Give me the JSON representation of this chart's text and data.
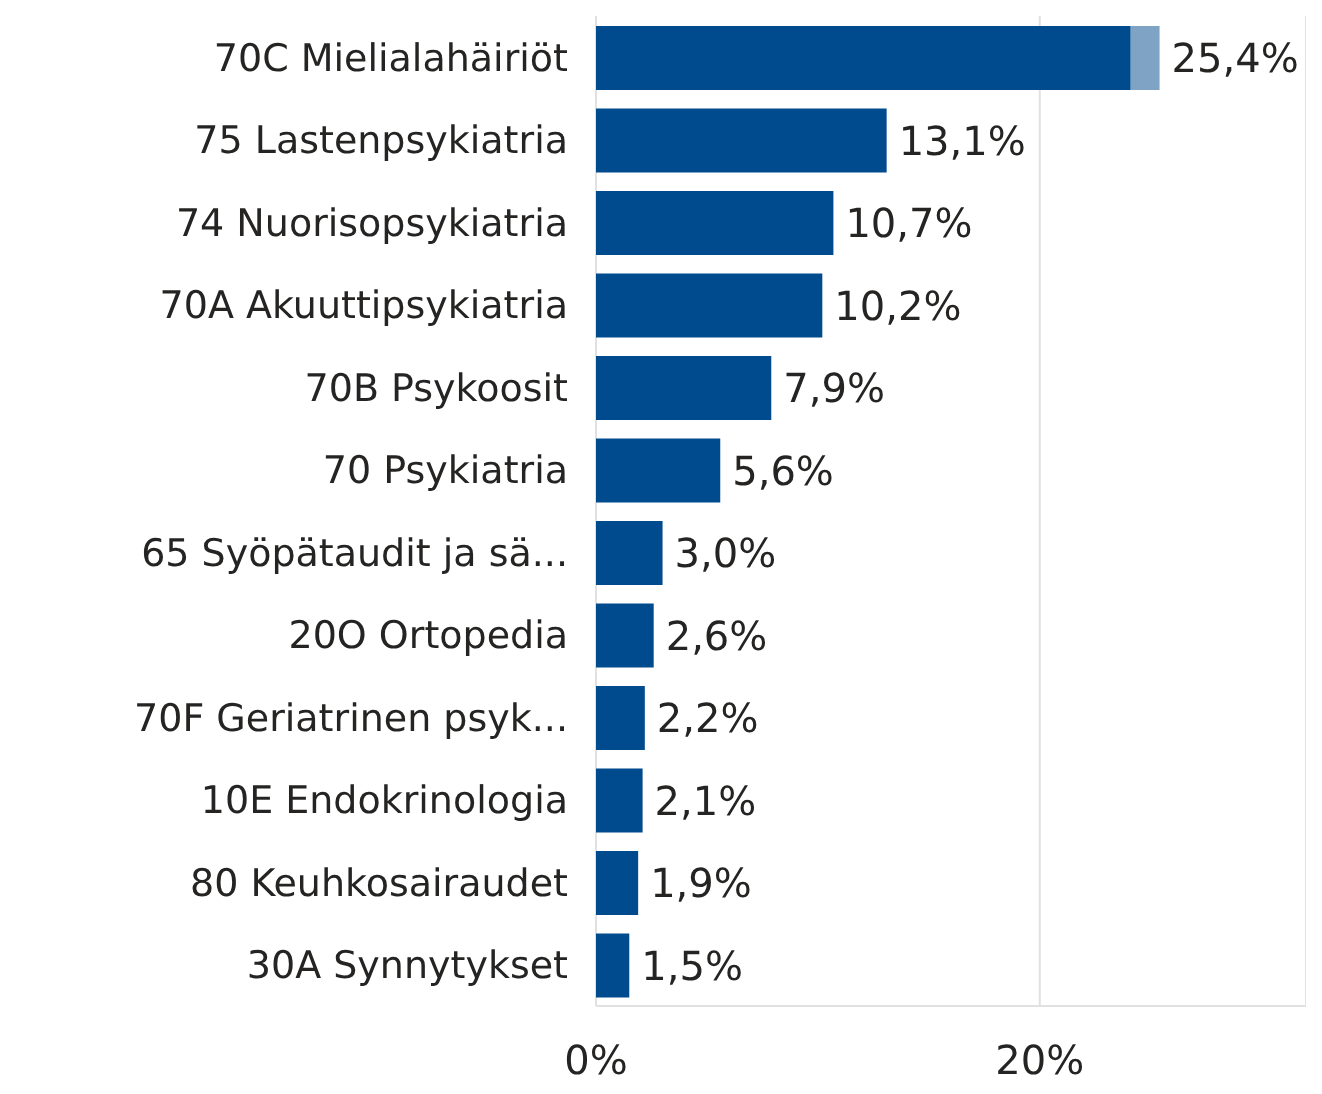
{
  "chart_data": {
    "type": "bar",
    "orientation": "horizontal",
    "stacked": true,
    "categories": [
      "70C Mielialahäiriöt",
      "75 Lastenpsykiatria",
      "74 Nuorisopsykiatria",
      "70A Akuuttipsykiatria",
      "70B Psykoosit",
      "70 Psykiatria",
      "65 Syöpätaudit ja sä...",
      "20O Ortopedia",
      "70F Geriatrinen psyk...",
      "10E Endokrinologia",
      "80 Keuhkosairaudet",
      "30A Synnytykset"
    ],
    "series": [
      {
        "color": "#004b8d",
        "values": [
          24.1,
          13.1,
          10.7,
          10.2,
          7.9,
          5.6,
          3.0,
          2.6,
          2.2,
          2.1,
          1.9,
          1.5
        ]
      },
      {
        "color": "#7fa3c4",
        "values": [
          1.3,
          null,
          null,
          null,
          null,
          null,
          null,
          null,
          null,
          null,
          null,
          null
        ]
      }
    ],
    "totals": [
      "25,4%",
      "13,1%",
      "10,7%",
      "10,2%",
      "7,9%",
      "5,6%",
      "3,0%",
      "2,6%",
      "2,2%",
      "2,1%",
      "1,9%",
      "1,5%"
    ],
    "xlim": [
      0,
      32
    ],
    "xticks": [
      {
        "value": 0,
        "label": "0%"
      },
      {
        "value": 20,
        "label": "20%"
      }
    ],
    "grid": "x",
    "legend": false
  }
}
